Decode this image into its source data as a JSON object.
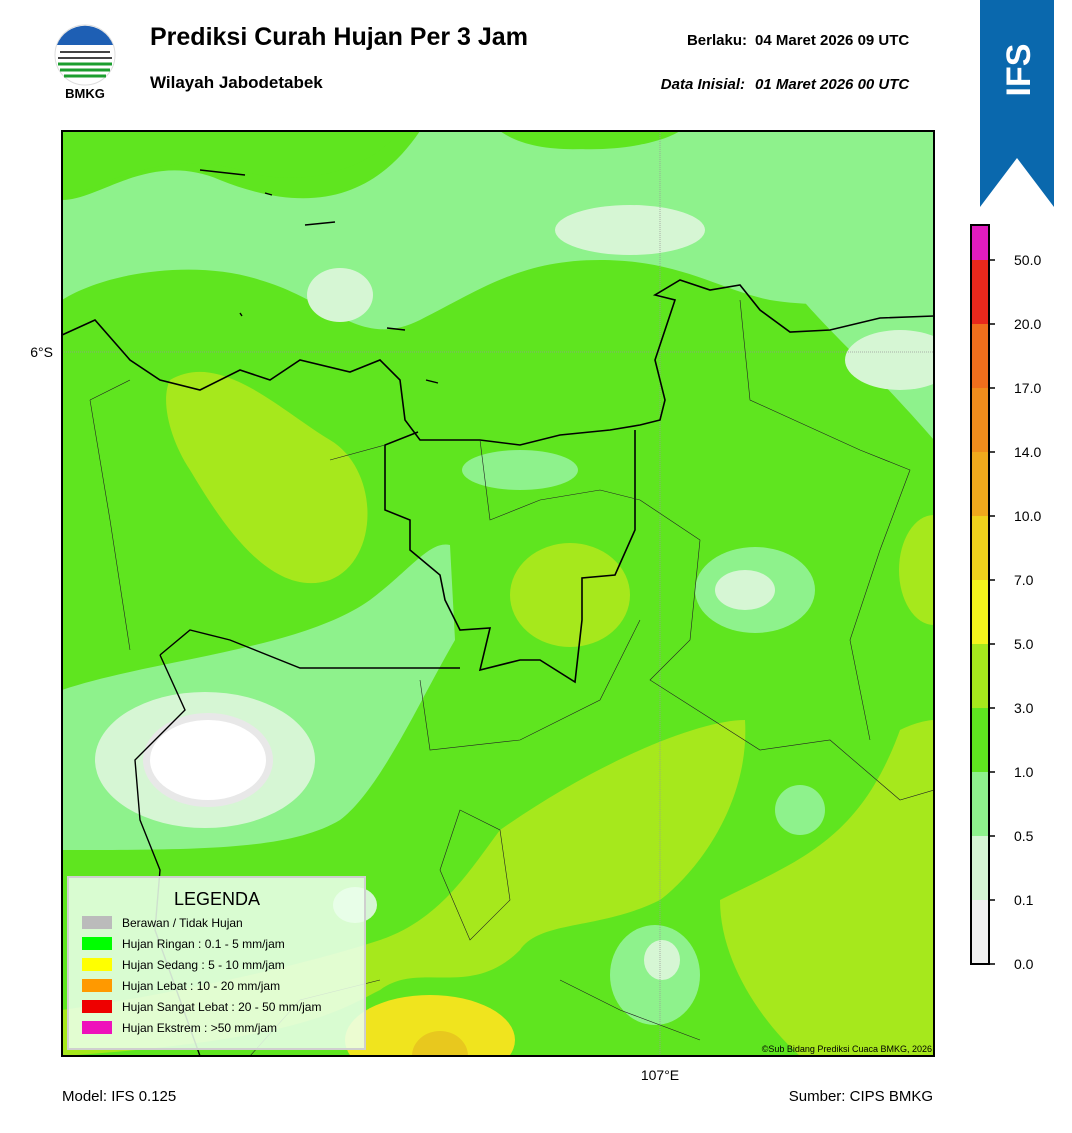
{
  "header": {
    "logo": "BMKG",
    "title": "Prediksi Curah Hujan Per 3 Jam",
    "subtitle": "Wilayah Jabodetabek",
    "valid_label": "Berlaku:",
    "valid": "04 Maret 2026 09 UTC",
    "init_label": "Data Inisial:",
    "init": "01 Maret 2026 00 UTC",
    "badge": "IFS"
  },
  "map": {
    "lat_label": "6°S",
    "lon_label": "107°E",
    "credit": "©Sub Bidang Prediksi Cuaca BMKG, 2026"
  },
  "legend": {
    "title": "LEGENDA",
    "items": [
      {
        "label": "Berawan / Tidak Hujan",
        "color": "#bbbbbb"
      },
      {
        "label": "Hujan Ringan : 0.1 - 5 mm/jam",
        "color": "#00ff00"
      },
      {
        "label": "Hujan Sedang : 5 - 10 mm/jam",
        "color": "#ffff00"
      },
      {
        "label": "Hujan Lebat : 10 - 20 mm/jam",
        "color": "#ff9900"
      },
      {
        "label": "Hujan Sangat Lebat : 20 - 50 mm/jam",
        "color": "#ee0000"
      },
      {
        "label": "Hujan Ekstrem : >50 mm/jam",
        "color": "#ee11bb"
      }
    ]
  },
  "colorbar": {
    "ticks": [
      "0.0",
      "0.1",
      "0.5",
      "1.0",
      "3.0",
      "5.0",
      "7.0",
      "10.0",
      "14.0",
      "17.0",
      "20.0",
      "50.0"
    ],
    "colors": [
      "#f0f0f0",
      "#d6f6d4",
      "#8ef28c",
      "#5fe51f",
      "#a6e81c",
      "#f5f51c",
      "#f0d21c",
      "#f0a81c",
      "#f08c1c",
      "#f06e1c",
      "#e8281c",
      "#e01cbe"
    ]
  },
  "footer": {
    "model": "Model: IFS 0.125",
    "source": "Sumber: CIPS BMKG"
  }
}
